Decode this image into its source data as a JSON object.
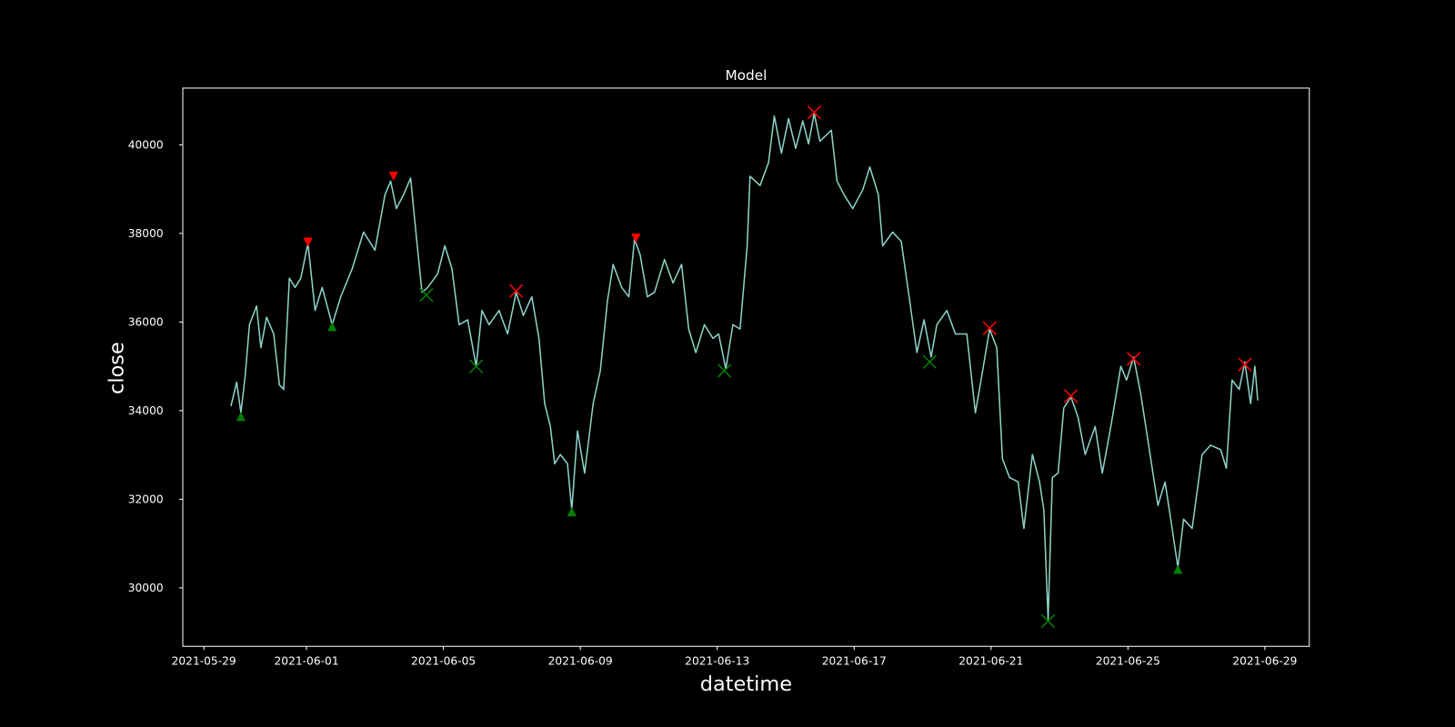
{
  "chart_data": {
    "type": "line",
    "title": "Model",
    "x_label": "datetime",
    "y_label": "close",
    "color": "#8dd3c7",
    "background": "#000000",
    "xlim": [
      "2021-05-28 09:15",
      "2021-06-30 07:10"
    ],
    "ylim": [
      28680,
      41280
    ],
    "xticks": [
      "2021-05-29",
      "2021-06-01",
      "2021-06-05",
      "2021-06-09",
      "2021-06-13",
      "2021-06-17",
      "2021-06-21",
      "2021-06-25",
      "2021-06-29"
    ],
    "yticks": [
      30000,
      32000,
      34000,
      36000,
      38000,
      40000
    ],
    "x": [
      "2021-05-29 19:00",
      "2021-05-29 23:00",
      "2021-05-30 02:00",
      "2021-05-30 05:00",
      "2021-05-30 08:00",
      "2021-05-30 13:00",
      "2021-05-30 16:00",
      "2021-05-30 20:00",
      "2021-05-31 01:00",
      "2021-05-31 05:00",
      "2021-05-31 08:00",
      "2021-05-31 12:00",
      "2021-05-31 16:00",
      "2021-05-31 20:00",
      "2021-06-01 01:00",
      "2021-06-01 06:00",
      "2021-06-01 11:00",
      "2021-06-01 18:00",
      "2021-06-02 00:00",
      "2021-06-02 08:00",
      "2021-06-02 16:00",
      "2021-06-03 00:00",
      "2021-06-03 07:00",
      "2021-06-03 11:00",
      "2021-06-03 15:00",
      "2021-06-03 20:00",
      "2021-06-04 01:00",
      "2021-06-04 05:00",
      "2021-06-04 09:00",
      "2021-06-04 13:00",
      "2021-06-04 20:00",
      "2021-06-05 01:00",
      "2021-06-05 06:00",
      "2021-06-05 11:00",
      "2021-06-05 17:00",
      "2021-06-05 23:00",
      "2021-06-06 03:00",
      "2021-06-06 08:00",
      "2021-06-06 15:00",
      "2021-06-06 21:00",
      "2021-06-07 03:00",
      "2021-06-07 08:00",
      "2021-06-07 14:00",
      "2021-06-07 19:00",
      "2021-06-07 23:00",
      "2021-06-08 03:00",
      "2021-06-08 06:00",
      "2021-06-08 10:00",
      "2021-06-08 15:00",
      "2021-06-08 18:00",
      "2021-06-08 22:00",
      "2021-06-09 03:00",
      "2021-06-09 09:00",
      "2021-06-09 14:00",
      "2021-06-09 19:00",
      "2021-06-09 23:00",
      "2021-06-10 05:00",
      "2021-06-10 10:00",
      "2021-06-10 14:00",
      "2021-06-10 18:00",
      "2021-06-10 23:00",
      "2021-06-11 04:00",
      "2021-06-11 11:00",
      "2021-06-11 17:00",
      "2021-06-11 23:00",
      "2021-06-12 04:00",
      "2021-06-12 09:00",
      "2021-06-12 15:00",
      "2021-06-12 21:00",
      "2021-06-13 01:00",
      "2021-06-13 06:00",
      "2021-06-13 11:00",
      "2021-06-13 16:00",
      "2021-06-13 21:00",
      "2021-06-13 23:00",
      "2021-06-14 06:00",
      "2021-06-14 12:00",
      "2021-06-14 16:00",
      "2021-06-14 21:00",
      "2021-06-15 02:00",
      "2021-06-15 07:00",
      "2021-06-15 12:00",
      "2021-06-15 16:00",
      "2021-06-15 20:00",
      "2021-06-16 00:00",
      "2021-06-16 08:00",
      "2021-06-16 12:00",
      "2021-06-16 17:00",
      "2021-06-16 23:00",
      "2021-06-17 06:00",
      "2021-06-17 11:00",
      "2021-06-17 17:00",
      "2021-06-17 20:00",
      "2021-06-18 03:00",
      "2021-06-18 09:00",
      "2021-06-18 15:00",
      "2021-06-18 20:00",
      "2021-06-19 01:00",
      "2021-06-19 06:00",
      "2021-06-19 10:00",
      "2021-06-19 17:00",
      "2021-06-19 23:00",
      "2021-06-20 07:00",
      "2021-06-20 13:00",
      "2021-06-20 17:00",
      "2021-06-20 23:00",
      "2021-06-21 04:00",
      "2021-06-21 08:00",
      "2021-06-21 13:00",
      "2021-06-21 19:00",
      "2021-06-21 23:00",
      "2021-06-22 05:00",
      "2021-06-22 10:00",
      "2021-06-22 13:00",
      "2021-06-22 16:00",
      "2021-06-22 19:00",
      "2021-06-22 23:00",
      "2021-06-23 03:00",
      "2021-06-23 08:00",
      "2021-06-23 13:00",
      "2021-06-23 18:00",
      "2021-06-24 01:00",
      "2021-06-24 06:00",
      "2021-06-24 12:00",
      "2021-06-24 19:00",
      "2021-06-24 23:00",
      "2021-06-25 04:00",
      "2021-06-25 09:00",
      "2021-06-25 16:00",
      "2021-06-25 21:00",
      "2021-06-26 02:00",
      "2021-06-26 06:00",
      "2021-06-26 11:00",
      "2021-06-26 15:00",
      "2021-06-26 21:00",
      "2021-06-27 04:00",
      "2021-06-27 10:00",
      "2021-06-27 17:00",
      "2021-06-27 21:00",
      "2021-06-28 01:00",
      "2021-06-28 06:00",
      "2021-06-28 10:00",
      "2021-06-28 14:00",
      "2021-06-28 17:00",
      "2021-06-28 19:00"
    ],
    "values": [
      34100,
      34640,
      33950,
      34790,
      35940,
      36360,
      35420,
      36110,
      35730,
      34580,
      34480,
      36990,
      36780,
      36990,
      37780,
      36260,
      36780,
      35940,
      36570,
      37200,
      38030,
      37620,
      38870,
      39180,
      38560,
      38870,
      39250,
      37930,
      36670,
      36780,
      37090,
      37720,
      37200,
      35940,
      36050,
      35000,
      36260,
      35940,
      36260,
      35730,
      36670,
      36150,
      36570,
      35630,
      34160,
      33640,
      32800,
      33010,
      32800,
      31760,
      33540,
      32590,
      34160,
      34900,
      36470,
      37300,
      36780,
      36570,
      37870,
      37510,
      36570,
      36670,
      37410,
      36880,
      37300,
      35840,
      35310,
      35940,
      35630,
      35730,
      34940,
      35940,
      35840,
      37720,
      39290,
      39080,
      39600,
      40650,
      39810,
      40590,
      39920,
      40540,
      40020,
      40710,
      40080,
      40330,
      39180,
      38870,
      38560,
      38980,
      39500,
      38870,
      37720,
      38030,
      37820,
      36470,
      35310,
      36050,
      35210,
      35940,
      36260,
      35730,
      35730,
      33950,
      34690,
      35840,
      35420,
      32910,
      32490,
      32390,
      31340,
      33010,
      32390,
      31760,
      29290,
      32490,
      32590,
      34060,
      34310,
      33850,
      33010,
      33640,
      32590,
      33640,
      35000,
      34690,
      35210,
      34370,
      32910,
      31860,
      32390,
      31550,
      30460,
      31550,
      31340,
      33010,
      33220,
      33120,
      32700,
      34690,
      34480,
      35100,
      34160,
      35000,
      34230
    ],
    "markers": [
      {
        "marker": "triangle-down",
        "color": "#ff0000",
        "x": [
          "2021-06-01 01:00",
          "2021-06-03 13:00",
          "2021-06-10 15:00"
        ],
        "values": [
          37800,
          39290,
          37890
        ]
      },
      {
        "marker": "triangle-up",
        "color": "#008000",
        "x": [
          "2021-05-30 02:00",
          "2021-06-01 18:00",
          "2021-06-08 18:00",
          "2021-06-26 11:00"
        ],
        "values": [
          33870,
          35900,
          31720,
          30420
        ]
      },
      {
        "marker": "x",
        "color": "#ff0000",
        "x": [
          "2021-06-07 03:00",
          "2021-06-15 20:00",
          "2021-06-20 23:00",
          "2021-06-23 08:00",
          "2021-06-25 04:00",
          "2021-06-28 10:00"
        ],
        "values": [
          36700,
          40730,
          35860,
          34330,
          35170,
          35040
        ]
      },
      {
        "marker": "x",
        "color": "#008000",
        "x": [
          "2021-06-04 12:00",
          "2021-06-05 23:00",
          "2021-06-13 05:00",
          "2021-06-19 05:00",
          "2021-06-22 16:00"
        ],
        "values": [
          36610,
          35000,
          34900,
          35100,
          29250
        ]
      }
    ]
  }
}
